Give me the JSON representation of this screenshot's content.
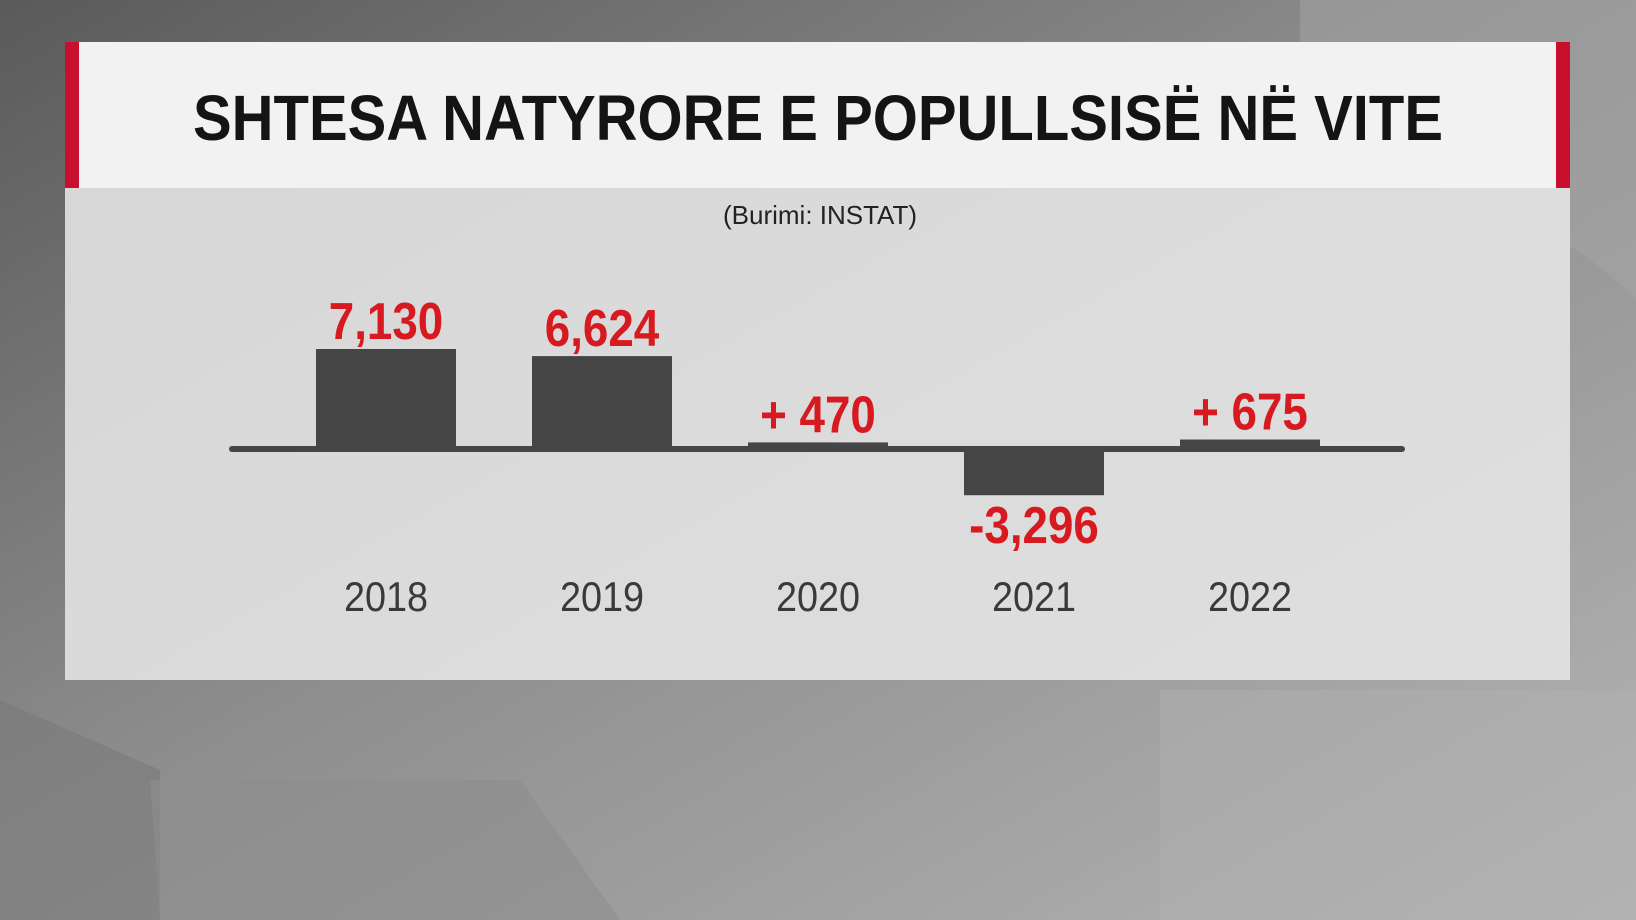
{
  "chart_data": {
    "type": "bar",
    "title": "SHTESA NATYRORE E POPULLSISË NË VITE",
    "subtitle": "(Burimi: INSTAT)",
    "categories": [
      "2018",
      "2019",
      "2020",
      "2021",
      "2022"
    ],
    "values": [
      7130,
      6624,
      470,
      -3296,
      675
    ],
    "value_labels": [
      "7,130",
      "6,624",
      "+ 470",
      "-3,296",
      "+ 675"
    ],
    "color": "#454545",
    "label_color": "#d71920"
  }
}
